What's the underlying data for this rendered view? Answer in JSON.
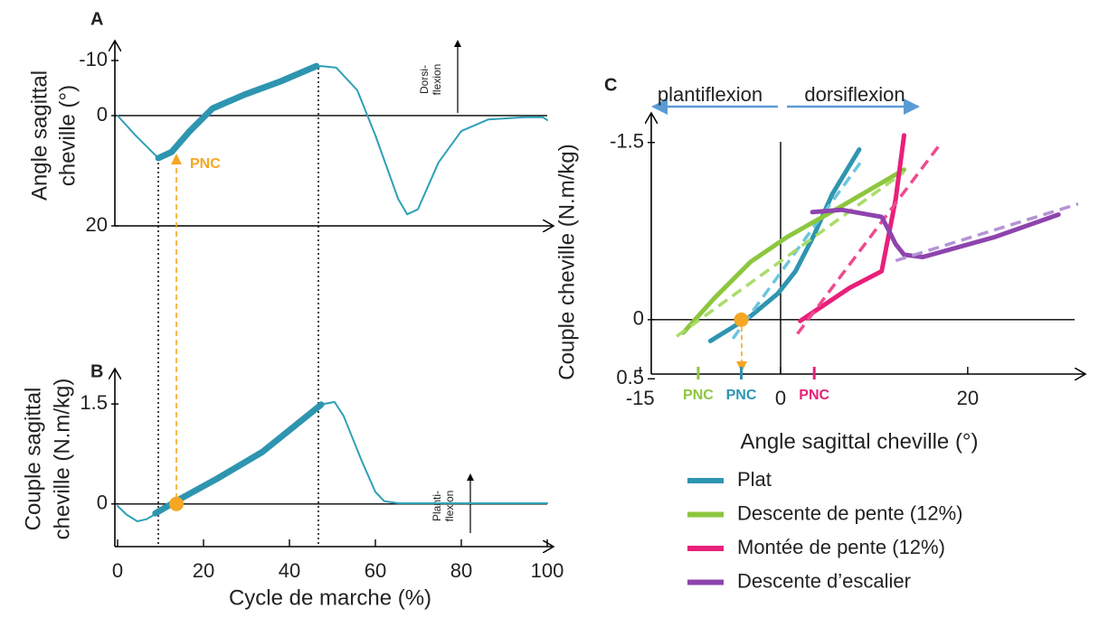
{
  "chart_data": [
    {
      "type": "line",
      "panel": "A",
      "ylabel": [
        "Angle sagittal",
        "cheville (°)"
      ],
      "annotation": [
        "Dorsi-",
        "flexion"
      ],
      "pnc_label": "PNC",
      "xlim": [
        0,
        100
      ],
      "ylim": [
        20,
        -13.6
      ],
      "yticks": [
        -10,
        0,
        20
      ],
      "series": [
        {
          "color": "#2fa0b5",
          "width": 2,
          "x": [
            0,
            4.2,
            9.5,
            12.6,
            16.8,
            22.1,
            29.5,
            37.9,
            47.4,
            50.9,
            55.8,
            60,
            65.3,
            67.4,
            69.9,
            74.7,
            80,
            86.3,
            94.7,
            99,
            100
          ],
          "values": [
            0,
            3.6,
            7.7,
            6.9,
            2.8,
            -1.3,
            -3.8,
            -6.2,
            -9.0,
            -8.7,
            -4.6,
            3.6,
            15.1,
            17.9,
            17.0,
            8.5,
            2.8,
            0.7,
            0.3,
            0.3,
            0.8
          ]
        },
        {
          "color": "#2e95b0",
          "width": 7,
          "x": [
            9.5,
            12.6,
            16.8,
            22.1,
            29.5,
            37.9,
            46.3
          ],
          "values": [
            7.7,
            6.6,
            2.8,
            -1.3,
            -3.8,
            -6.2,
            -9.0
          ]
        }
      ]
    },
    {
      "type": "line",
      "panel": "B",
      "ylabel": [
        "Couple sagittal",
        "cheville (N.m/kg)"
      ],
      "xlabel": "Cycle de marche (%)",
      "annotation": [
        "Planti-",
        "flexion"
      ],
      "xlim": [
        0,
        100
      ],
      "ylim": [
        -0.64,
        2.03
      ],
      "xticks": [
        0,
        20,
        40,
        60,
        80,
        100
      ],
      "yticks": [
        0,
        1.5
      ],
      "points": [
        {
          "x": 13.7,
          "y": 0,
          "color": "#f5a623"
        }
      ],
      "series": [
        {
          "color": "#2fa0b5",
          "width": 2,
          "x": [
            0,
            2.1,
            4.6,
            6.7,
            10.5,
            14.7,
            23.2,
            33.7,
            44.2,
            48,
            50.5,
            52.6,
            56.8,
            60,
            62.1,
            65.3,
            100
          ],
          "values": [
            -0.03,
            -0.16,
            -0.26,
            -0.23,
            -0.09,
            0.08,
            0.38,
            0.78,
            1.32,
            1.5,
            1.53,
            1.32,
            0.65,
            0.18,
            0.04,
            0.01,
            0.01
          ]
        },
        {
          "color": "#2e95b0",
          "width": 7,
          "x": [
            8.8,
            14.7,
            23.2,
            33.7,
            47.4
          ],
          "values": [
            -0.14,
            0.08,
            0.38,
            0.78,
            1.49
          ]
        }
      ]
    },
    {
      "type": "line",
      "panel": "C",
      "xlabel": "Angle sagittal cheville (°)",
      "ylabel": "Couple cheville (N.m/kg)",
      "directions": [
        "plantiflexion",
        "dorsiflexion"
      ],
      "xlim": [
        -15.5,
        32
      ],
      "ylim": [
        0.46,
        -1.75
      ],
      "xticks": [
        -15,
        0,
        20
      ],
      "yticks": [
        -1.5,
        0,
        0.5
      ],
      "point": {
        "x": -4.2,
        "y": 0,
        "color": "#f5a623"
      },
      "pnc": [
        {
          "label": "PNC",
          "x": -8.8,
          "color": "#8dc63f"
        },
        {
          "label": "PNC",
          "x": -4.2,
          "color": "#2e95b0"
        },
        {
          "label": "PNC",
          "x": 3.6,
          "color": "#e8207a"
        }
      ],
      "series": [
        {
          "name": "Plat",
          "color": "#2e95b0",
          "fit_color": "#6cc5dd",
          "x": [
            -7.5,
            -3.2,
            -0.3,
            1.6,
            3.6,
            5.5,
            8.4
          ],
          "values": [
            0.18,
            -0.03,
            -0.22,
            -0.41,
            -0.72,
            -1.06,
            -1.44
          ],
          "fit_x": [
            -5.1,
            8.9
          ],
          "fit_values": [
            0.16,
            -1.37
          ]
        },
        {
          "name": "Descente de pente (12%)",
          "color": "#8dc63f",
          "fit_color": "#a9dc6a",
          "x": [
            -10.4,
            -7.1,
            -3.2,
            0.7,
            6.5,
            13.2
          ],
          "values": [
            0.11,
            -0.18,
            -0.49,
            -0.7,
            -0.96,
            -1.27
          ],
          "fit_x": [
            -11.1,
            13.2
          ],
          "fit_values": [
            0.14,
            -1.25
          ]
        },
        {
          "name": "Montée de pente (12%)",
          "color": "#e8207a",
          "fit_color": "#ef4a90",
          "x": [
            2.1,
            7.4,
            10.8,
            12.3,
            13.2
          ],
          "values": [
            0.01,
            -0.27,
            -0.41,
            -1.02,
            -1.56
          ],
          "fit_x": [
            1.8,
            16.9
          ],
          "fit_values": [
            0.12,
            -1.47
          ]
        },
        {
          "name": "Descente d’escalier",
          "color": "#8e44ad",
          "fit_color": "#b493d6",
          "x": [
            3.4,
            6.5,
            10.8,
            11.8,
            12.3,
            13.2,
            15.2,
            22.9,
            29.7
          ],
          "values": [
            -0.91,
            -0.93,
            -0.87,
            -0.72,
            -0.64,
            -0.55,
            -0.53,
            -0.7,
            -0.89
          ],
          "fit_x": [
            12.3,
            31.8
          ],
          "fit_values": [
            -0.5,
            -0.98
          ]
        }
      ]
    }
  ]
}
